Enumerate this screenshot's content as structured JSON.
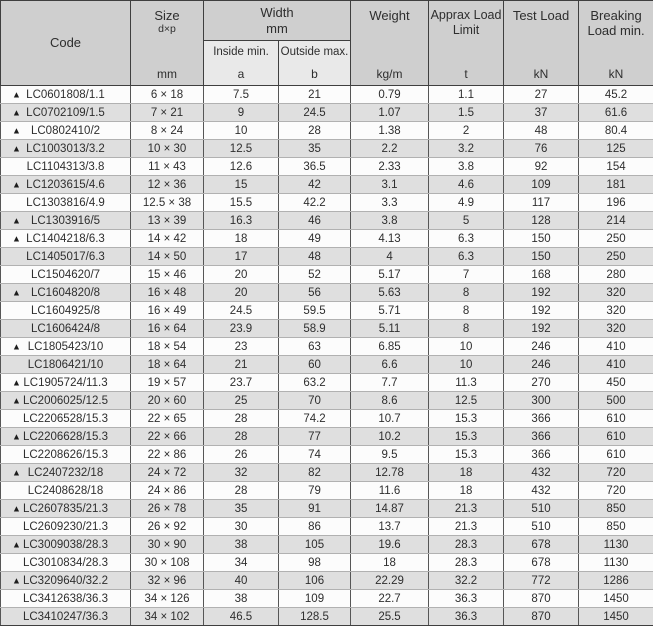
{
  "colors": {
    "header_bg": "#cfcfcf",
    "subheader_bg": "#e9e9e9",
    "stripe_bg": "#dfdfdf",
    "row_bg": "#fcfcfc",
    "border_dark": "#3f3f3f",
    "border_light": "#b1b1b1",
    "text_color": "#2e2e2e"
  },
  "table": {
    "marker_icon": "▲",
    "headers": {
      "code": "Code",
      "size_label": "Size",
      "size_sub": "d×p",
      "size_unit": "mm",
      "width_label": "Width",
      "width_unit": "mm",
      "inside_label": "Inside min.",
      "inside_sub": "a",
      "outside_label": "Outside max.",
      "outside_sub": "b",
      "weight_label": "Weight",
      "weight_unit": "kg/m",
      "load_limit_label": "Apprax Load Limit",
      "load_limit_unit": "t",
      "test_load_label": "Test Load",
      "test_load_unit": "kN",
      "breaking_label": "Breaking Load min.",
      "breaking_unit": "kN"
    },
    "rows": [
      {
        "marked": true,
        "code": "LC0601808/1.1",
        "size": "6 × 18",
        "inside": "7.5",
        "outside": "21",
        "weight": "0.79",
        "load_limit": "1.1",
        "test_load": "27",
        "breaking": "45.2"
      },
      {
        "marked": true,
        "code": "LC0702109/1.5",
        "size": "7 × 21",
        "inside": "9",
        "outside": "24.5",
        "weight": "1.07",
        "load_limit": "1.5",
        "test_load": "37",
        "breaking": "61.6"
      },
      {
        "marked": true,
        "code": "LC0802410/2",
        "size": "8 × 24",
        "inside": "10",
        "outside": "28",
        "weight": "1.38",
        "load_limit": "2",
        "test_load": "48",
        "breaking": "80.4"
      },
      {
        "marked": true,
        "code": "LC1003013/3.2",
        "size": "10 × 30",
        "inside": "12.5",
        "outside": "35",
        "weight": "2.2",
        "load_limit": "3.2",
        "test_load": "76",
        "breaking": "125"
      },
      {
        "marked": false,
        "code": "LC1104313/3.8",
        "size": "11 × 43",
        "inside": "12.6",
        "outside": "36.5",
        "weight": "2.33",
        "load_limit": "3.8",
        "test_load": "92",
        "breaking": "154"
      },
      {
        "marked": true,
        "code": "LC1203615/4.6",
        "size": "12 × 36",
        "inside": "15",
        "outside": "42",
        "weight": "3.1",
        "load_limit": "4.6",
        "test_load": "109",
        "breaking": "181"
      },
      {
        "marked": false,
        "code": "LC1303816/4.9",
        "size": "12.5 × 38",
        "inside": "15.5",
        "outside": "42.2",
        "weight": "3.3",
        "load_limit": "4.9",
        "test_load": "117",
        "breaking": "196"
      },
      {
        "marked": true,
        "code": "LC1303916/5",
        "size": "13 × 39",
        "inside": "16.3",
        "outside": "46",
        "weight": "3.8",
        "load_limit": "5",
        "test_load": "128",
        "breaking": "214"
      },
      {
        "marked": true,
        "code": "LC1404218/6.3",
        "size": "14 × 42",
        "inside": "18",
        "outside": "49",
        "weight": "4.13",
        "load_limit": "6.3",
        "test_load": "150",
        "breaking": "250"
      },
      {
        "marked": false,
        "code": "LC1405017/6.3",
        "size": "14 × 50",
        "inside": "17",
        "outside": "48",
        "weight": "4",
        "load_limit": "6.3",
        "test_load": "150",
        "breaking": "250"
      },
      {
        "marked": false,
        "code": "LC1504620/7",
        "size": "15 × 46",
        "inside": "20",
        "outside": "52",
        "weight": "5.17",
        "load_limit": "7",
        "test_load": "168",
        "breaking": "280"
      },
      {
        "marked": true,
        "code": "LC1604820/8",
        "size": "16 × 48",
        "inside": "20",
        "outside": "56",
        "weight": "5.63",
        "load_limit": "8",
        "test_load": "192",
        "breaking": "320"
      },
      {
        "marked": false,
        "code": "LC1604925/8",
        "size": "16 × 49",
        "inside": "24.5",
        "outside": "59.5",
        "weight": "5.71",
        "load_limit": "8",
        "test_load": "192",
        "breaking": "320"
      },
      {
        "marked": false,
        "code": "LC1606424/8",
        "size": "16 × 64",
        "inside": "23.9",
        "outside": "58.9",
        "weight": "5.11",
        "load_limit": "8",
        "test_load": "192",
        "breaking": "320"
      },
      {
        "marked": true,
        "code": "LC1805423/10",
        "size": "18 × 54",
        "inside": "23",
        "outside": "63",
        "weight": "6.85",
        "load_limit": "10",
        "test_load": "246",
        "breaking": "410"
      },
      {
        "marked": false,
        "code": "LC1806421/10",
        "size": "18 × 64",
        "inside": "21",
        "outside": "60",
        "weight": "6.6",
        "load_limit": "10",
        "test_load": "246",
        "breaking": "410"
      },
      {
        "marked": true,
        "code": "LC1905724/11.3",
        "size": "19 × 57",
        "inside": "23.7",
        "outside": "63.2",
        "weight": "7.7",
        "load_limit": "11.3",
        "test_load": "270",
        "breaking": "450"
      },
      {
        "marked": true,
        "code": "LC2006025/12.5",
        "size": "20 × 60",
        "inside": "25",
        "outside": "70",
        "weight": "8.6",
        "load_limit": "12.5",
        "test_load": "300",
        "breaking": "500"
      },
      {
        "marked": false,
        "code": "LC2206528/15.3",
        "size": "22 × 65",
        "inside": "28",
        "outside": "74.2",
        "weight": "10.7",
        "load_limit": "15.3",
        "test_load": "366",
        "breaking": "610"
      },
      {
        "marked": true,
        "code": "LC2206628/15.3",
        "size": "22 × 66",
        "inside": "28",
        "outside": "77",
        "weight": "10.2",
        "load_limit": "15.3",
        "test_load": "366",
        "breaking": "610"
      },
      {
        "marked": false,
        "code": "LC2208626/15.3",
        "size": "22 × 86",
        "inside": "26",
        "outside": "74",
        "weight": "9.5",
        "load_limit": "15.3",
        "test_load": "366",
        "breaking": "610"
      },
      {
        "marked": true,
        "code": "LC2407232/18",
        "size": "24 × 72",
        "inside": "32",
        "outside": "82",
        "weight": "12.78",
        "load_limit": "18",
        "test_load": "432",
        "breaking": "720"
      },
      {
        "marked": false,
        "code": "LC2408628/18",
        "size": "24 × 86",
        "inside": "28",
        "outside": "79",
        "weight": "11.6",
        "load_limit": "18",
        "test_load": "432",
        "breaking": "720"
      },
      {
        "marked": true,
        "code": "LC2607835/21.3",
        "size": "26 × 78",
        "inside": "35",
        "outside": "91",
        "weight": "14.87",
        "load_limit": "21.3",
        "test_load": "510",
        "breaking": "850"
      },
      {
        "marked": false,
        "code": "LC2609230/21.3",
        "size": "26 × 92",
        "inside": "30",
        "outside": "86",
        "weight": "13.7",
        "load_limit": "21.3",
        "test_load": "510",
        "breaking": "850"
      },
      {
        "marked": true,
        "code": "LC3009038/28.3",
        "size": "30 × 90",
        "inside": "38",
        "outside": "105",
        "weight": "19.6",
        "load_limit": "28.3",
        "test_load": "678",
        "breaking": "1130"
      },
      {
        "marked": false,
        "code": "LC3010834/28.3",
        "size": "30 × 108",
        "inside": "34",
        "outside": "98",
        "weight": "18",
        "load_limit": "28.3",
        "test_load": "678",
        "breaking": "1130"
      },
      {
        "marked": true,
        "code": "LC3209640/32.2",
        "size": "32 × 96",
        "inside": "40",
        "outside": "106",
        "weight": "22.29",
        "load_limit": "32.2",
        "test_load": "772",
        "breaking": "1286"
      },
      {
        "marked": false,
        "code": "LC3412638/36.3",
        "size": "34 × 126",
        "inside": "38",
        "outside": "109",
        "weight": "22.7",
        "load_limit": "36.3",
        "test_load": "870",
        "breaking": "1450"
      },
      {
        "marked": false,
        "code": "LC3410247/36.3",
        "size": "34 × 102",
        "inside": "46.5",
        "outside": "128.5",
        "weight": "25.5",
        "load_limit": "36.3",
        "test_load": "870",
        "breaking": "1450"
      }
    ]
  }
}
